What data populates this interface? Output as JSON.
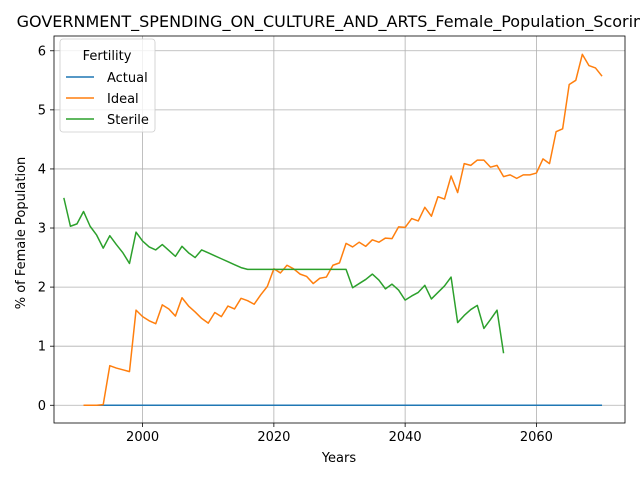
{
  "chart_data": {
    "type": "line",
    "title": "GOVERNMENT_SPENDING_ON_CULTURE_AND_ARTS_Female_Population_Scoring",
    "xlabel": "Years",
    "ylabel": "% of Female Population",
    "xlim": [
      1986.5,
      2073.5
    ],
    "ylim": [
      -0.3,
      6.25
    ],
    "x_ticks": [
      2000,
      2020,
      2040,
      2060
    ],
    "y_ticks": [
      0,
      1,
      2,
      3,
      4,
      5,
      6
    ],
    "grid": true,
    "legend": {
      "title": "Fertility",
      "placement": "top-left"
    },
    "series": [
      {
        "name": "Actual",
        "color": "#1f77b4",
        "points": [
          [
            1991,
            0
          ],
          [
            2070,
            0
          ]
        ]
      },
      {
        "name": "Ideal",
        "color": "#ff7f0e",
        "points": [
          [
            1991,
            0
          ],
          [
            1992,
            0
          ],
          [
            1993,
            0
          ],
          [
            1994,
            0.01
          ],
          [
            1995,
            0.67
          ],
          [
            1996,
            0.63
          ],
          [
            1997,
            0.6
          ],
          [
            1998,
            0.57
          ],
          [
            1999,
            1.61
          ],
          [
            2000,
            1.5
          ],
          [
            2001,
            1.43
          ],
          [
            2002,
            1.38
          ],
          [
            2003,
            1.7
          ],
          [
            2004,
            1.63
          ],
          [
            2005,
            1.51
          ],
          [
            2006,
            1.82
          ],
          [
            2007,
            1.68
          ],
          [
            2008,
            1.58
          ],
          [
            2009,
            1.47
          ],
          [
            2010,
            1.39
          ],
          [
            2011,
            1.57
          ],
          [
            2012,
            1.5
          ],
          [
            2013,
            1.68
          ],
          [
            2014,
            1.63
          ],
          [
            2015,
            1.81
          ],
          [
            2016,
            1.77
          ],
          [
            2017,
            1.71
          ],
          [
            2018,
            1.87
          ],
          [
            2019,
            2.01
          ],
          [
            2020,
            2.31
          ],
          [
            2021,
            2.24
          ],
          [
            2022,
            2.37
          ],
          [
            2023,
            2.31
          ],
          [
            2024,
            2.22
          ],
          [
            2025,
            2.18
          ],
          [
            2026,
            2.06
          ],
          [
            2027,
            2.15
          ],
          [
            2028,
            2.17
          ],
          [
            2029,
            2.37
          ],
          [
            2030,
            2.41
          ],
          [
            2031,
            2.74
          ],
          [
            2032,
            2.68
          ],
          [
            2033,
            2.76
          ],
          [
            2034,
            2.69
          ],
          [
            2035,
            2.8
          ],
          [
            2036,
            2.76
          ],
          [
            2037,
            2.83
          ],
          [
            2038,
            2.82
          ],
          [
            2039,
            3.02
          ],
          [
            2040,
            3.01
          ],
          [
            2041,
            3.16
          ],
          [
            2042,
            3.12
          ],
          [
            2043,
            3.35
          ],
          [
            2044,
            3.2
          ],
          [
            2045,
            3.53
          ],
          [
            2046,
            3.49
          ],
          [
            2047,
            3.88
          ],
          [
            2048,
            3.6
          ],
          [
            2049,
            4.09
          ],
          [
            2050,
            4.06
          ],
          [
            2051,
            4.15
          ],
          [
            2052,
            4.15
          ],
          [
            2053,
            4.03
          ],
          [
            2054,
            4.06
          ],
          [
            2055,
            3.87
          ],
          [
            2056,
            3.9
          ],
          [
            2057,
            3.84
          ],
          [
            2058,
            3.9
          ],
          [
            2059,
            3.9
          ],
          [
            2060,
            3.93
          ],
          [
            2061,
            4.17
          ],
          [
            2062,
            4.09
          ],
          [
            2063,
            4.63
          ],
          [
            2064,
            4.68
          ],
          [
            2065,
            5.43
          ],
          [
            2066,
            5.5
          ],
          [
            2067,
            5.94
          ],
          [
            2068,
            5.75
          ],
          [
            2069,
            5.71
          ],
          [
            2070,
            5.57
          ]
        ]
      },
      {
        "name": "Sterile",
        "color": "#2ca02c",
        "points": [
          [
            1988,
            3.51
          ],
          [
            1989,
            3.03
          ],
          [
            1990,
            3.07
          ],
          [
            1991,
            3.28
          ],
          [
            1992,
            3.03
          ],
          [
            1993,
            2.88
          ],
          [
            1994,
            2.66
          ],
          [
            1995,
            2.87
          ],
          [
            1996,
            2.72
          ],
          [
            1997,
            2.58
          ],
          [
            1998,
            2.4
          ],
          [
            1999,
            2.93
          ],
          [
            2000,
            2.78
          ],
          [
            2001,
            2.68
          ],
          [
            2002,
            2.63
          ],
          [
            2003,
            2.72
          ],
          [
            2004,
            2.62
          ],
          [
            2005,
            2.52
          ],
          [
            2006,
            2.69
          ],
          [
            2007,
            2.58
          ],
          [
            2008,
            2.5
          ],
          [
            2009,
            2.63
          ],
          [
            2010,
            2.58
          ],
          [
            2011,
            2.53
          ],
          [
            2012,
            2.48
          ],
          [
            2013,
            2.43
          ],
          [
            2014,
            2.38
          ],
          [
            2015,
            2.33
          ],
          [
            2016,
            2.3
          ],
          [
            2017,
            2.3
          ],
          [
            2018,
            2.3
          ],
          [
            2019,
            2.3
          ],
          [
            2020,
            2.3
          ],
          [
            2021,
            2.3
          ],
          [
            2022,
            2.3
          ],
          [
            2023,
            2.3
          ],
          [
            2024,
            2.3
          ],
          [
            2025,
            2.3
          ],
          [
            2026,
            2.3
          ],
          [
            2027,
            2.3
          ],
          [
            2028,
            2.3
          ],
          [
            2029,
            2.3
          ],
          [
            2030,
            2.3
          ],
          [
            2031,
            2.3
          ],
          [
            2032,
            1.99
          ],
          [
            2033,
            2.06
          ],
          [
            2034,
            2.13
          ],
          [
            2035,
            2.22
          ],
          [
            2036,
            2.12
          ],
          [
            2037,
            1.97
          ],
          [
            2038,
            2.05
          ],
          [
            2039,
            1.95
          ],
          [
            2040,
            1.78
          ],
          [
            2041,
            1.85
          ],
          [
            2042,
            1.91
          ],
          [
            2043,
            2.03
          ],
          [
            2044,
            1.8
          ],
          [
            2045,
            1.91
          ],
          [
            2046,
            2.02
          ],
          [
            2047,
            2.17
          ],
          [
            2048,
            1.4
          ],
          [
            2049,
            1.52
          ],
          [
            2050,
            1.62
          ],
          [
            2051,
            1.69
          ],
          [
            2052,
            1.3
          ],
          [
            2053,
            1.45
          ],
          [
            2054,
            1.61
          ],
          [
            2055,
            0.88
          ]
        ]
      }
    ]
  }
}
